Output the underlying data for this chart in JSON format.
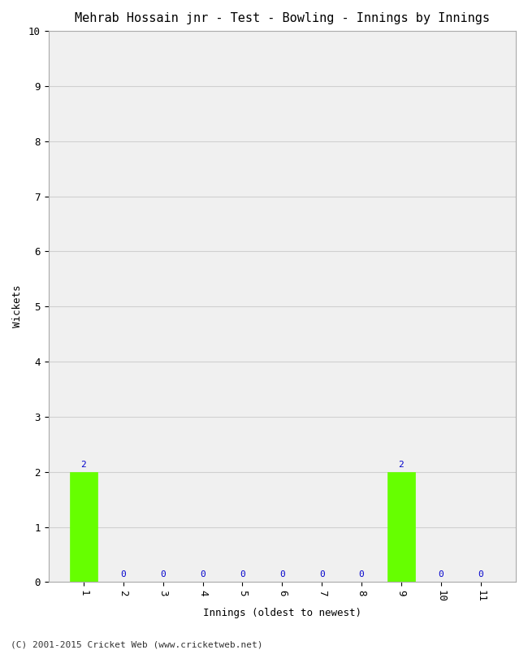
{
  "title": "Mehrab Hossain jnr - Test - Bowling - Innings by Innings",
  "xlabel": "Innings (oldest to newest)",
  "ylabel": "Wickets",
  "categories": [
    "1",
    "2",
    "3",
    "4",
    "5",
    "6",
    "7",
    "8",
    "9",
    "10",
    "11"
  ],
  "values": [
    2,
    0,
    0,
    0,
    0,
    0,
    0,
    0,
    2,
    0,
    0
  ],
  "bar_color": "#66ff00",
  "bar_edge_color": "#66ff00",
  "label_color": "#0000cc",
  "ylim": [
    0,
    10
  ],
  "yticks": [
    0,
    1,
    2,
    3,
    4,
    5,
    6,
    7,
    8,
    9,
    10
  ],
  "background_color": "#ffffff",
  "plot_bg_color": "#f0f0f0",
  "grid_color": "#d0d0d0",
  "footer": "(C) 2001-2015 Cricket Web (www.cricketweb.net)",
  "title_fontsize": 11,
  "label_fontsize": 9,
  "tick_fontsize": 9,
  "annotation_fontsize": 8,
  "footer_fontsize": 8
}
